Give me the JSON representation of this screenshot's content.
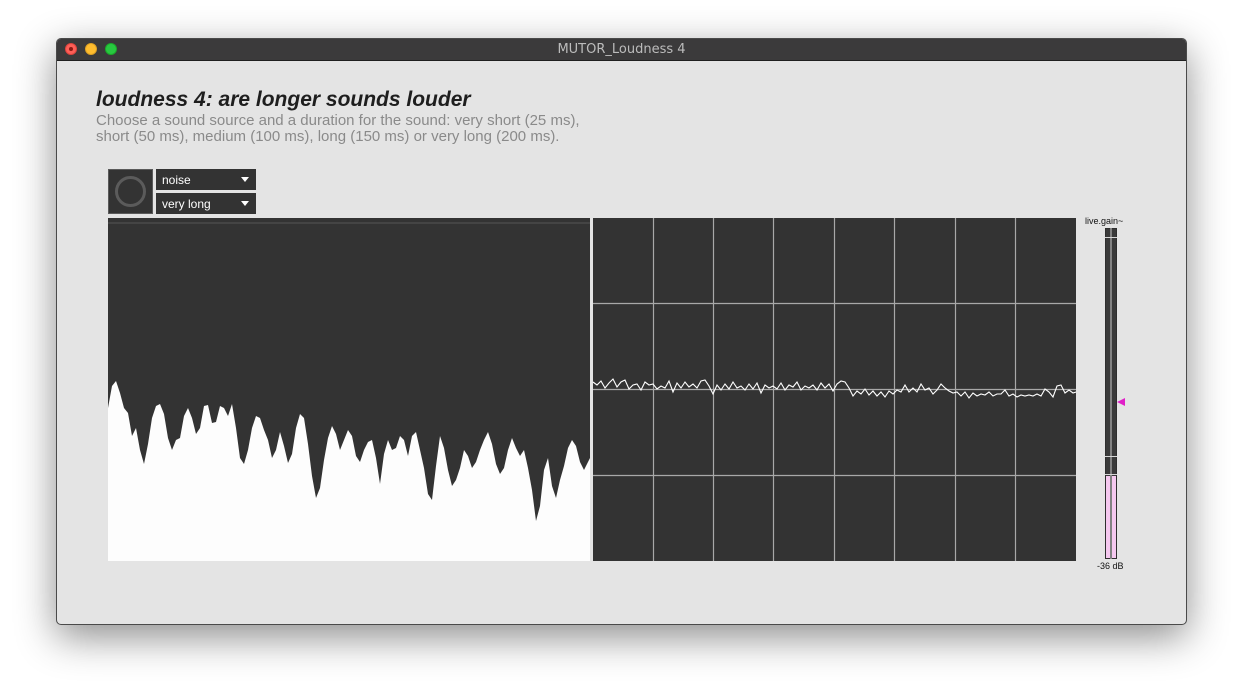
{
  "window": {
    "title": "MUTOR_Loudness 4"
  },
  "header": {
    "title": "loudness 4: are longer sounds louder",
    "description_line1": "Choose a sound source and a duration for the sound: very short (25 ms),",
    "description_line2": "short (50 ms), medium (100 ms), long (150 ms) or very long (200 ms)."
  },
  "controls": {
    "play_icon": "ring-icon",
    "source": {
      "selected": "noise"
    },
    "duration": {
      "selected": "very long"
    }
  },
  "meter": {
    "label": "live.gain~",
    "value_text": "-36 dB",
    "level_fraction": 0.25,
    "indicator_fraction": 0.47,
    "fill_color": "#f5c8ef",
    "indicator_color": "#e020c8"
  },
  "colors": {
    "panel_bg": "#333333",
    "window_bg": "#e4e4e4",
    "grid": "#a8a8a8",
    "trace": "#ffffff"
  }
}
